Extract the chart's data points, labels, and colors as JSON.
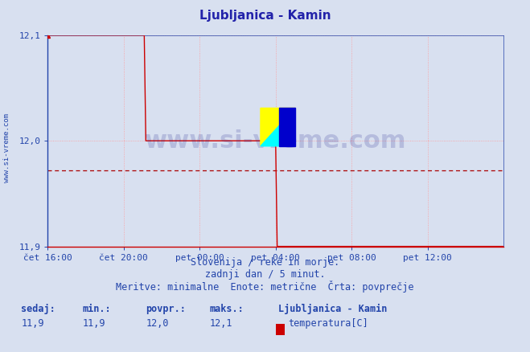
{
  "title": "Ljubljanica - Kamin",
  "title_color": "#2222aa",
  "bg_color": "#d8e0f0",
  "plot_bg_color": "#d8e0f0",
  "grid_color": "#ff9999",
  "grid_style": ":",
  "x_min": 0,
  "x_max": 288,
  "y_min": 11.9,
  "y_max": 12.1,
  "y_ticks": [
    11.9,
    12.0,
    12.1
  ],
  "x_tick_labels": [
    "čet 16:00",
    "čet 20:00",
    "pet 00:00",
    "pet 04:00",
    "pet 08:00",
    "pet 12:00"
  ],
  "x_tick_positions": [
    0,
    48,
    96,
    144,
    192,
    240
  ],
  "avg_line_value": 11.972,
  "avg_line_color": "#aa0000",
  "avg_line_style": "--",
  "line_color": "#cc0000",
  "line_width": 1.0,
  "watermark_text": "www.si-vreme.com",
  "watermark_color": "#1a1a8c",
  "watermark_alpha": 0.18,
  "subtitle1": "Slovenija / reke in morje.",
  "subtitle2": "zadnji dan / 5 minut.",
  "subtitle3": "Meritve: minimalne  Enote: metrične  Črta: povprečje",
  "subtitle_color": "#2244aa",
  "footer_label1": "sedaj:",
  "footer_label2": "min.:",
  "footer_label3": "povpr.:",
  "footer_label4": "maks.:",
  "footer_val1": "11,9",
  "footer_val2": "11,9",
  "footer_val3": "12,0",
  "footer_val4": "12,1",
  "footer_station": "Ljubljanica - Kamin",
  "footer_param": "temperatura[C]",
  "footer_color": "#2244aa",
  "footer_rect_color": "#cc0000",
  "ylabel_text": "www.si-vreme.com",
  "ylabel_color": "#2244aa",
  "axis_color_bottom": "#cc0000",
  "axis_color_left": "#2244aa",
  "tick_color": "#2244aa",
  "watermark_logo_yellow": "#ffff00",
  "watermark_logo_cyan": "#00ffff",
  "watermark_logo_blue": "#0000cc",
  "drop1_index": 62,
  "drop2_index": 144,
  "n_points": 289
}
